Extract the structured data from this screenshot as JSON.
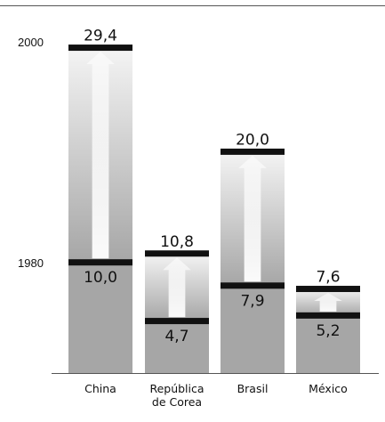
{
  "chart_data": {
    "type": "bar",
    "title": "",
    "xlabel": "",
    "ylabel": "",
    "categories": [
      "China",
      "República de Corea",
      "Brasil",
      "México"
    ],
    "category_lines": [
      [
        "China"
      ],
      [
        "República",
        "de Corea"
      ],
      [
        "Brasil"
      ],
      [
        "México"
      ]
    ],
    "y_tick_labels": [
      "2000",
      "1980"
    ],
    "series": [
      {
        "name": "1980",
        "values": [
          10.0,
          4.7,
          7.9,
          5.2
        ]
      },
      {
        "name": "2000",
        "values": [
          29.4,
          10.8,
          20.0,
          7.6
        ]
      }
    ],
    "value_labels_1980": [
      "10,0",
      "4,7",
      "7,9",
      "5,2"
    ],
    "value_labels_2000": [
      "29,4",
      "10,8",
      "20,0",
      "7,6"
    ],
    "ylim": [
      0,
      31
    ],
    "grid": false,
    "legend": "none",
    "colors": {
      "bar_base": "#a6a6a6",
      "gradient_light": "#f4f4f4",
      "marker": "#111111",
      "arrow": "#ffffff",
      "axis": "#555555"
    }
  }
}
